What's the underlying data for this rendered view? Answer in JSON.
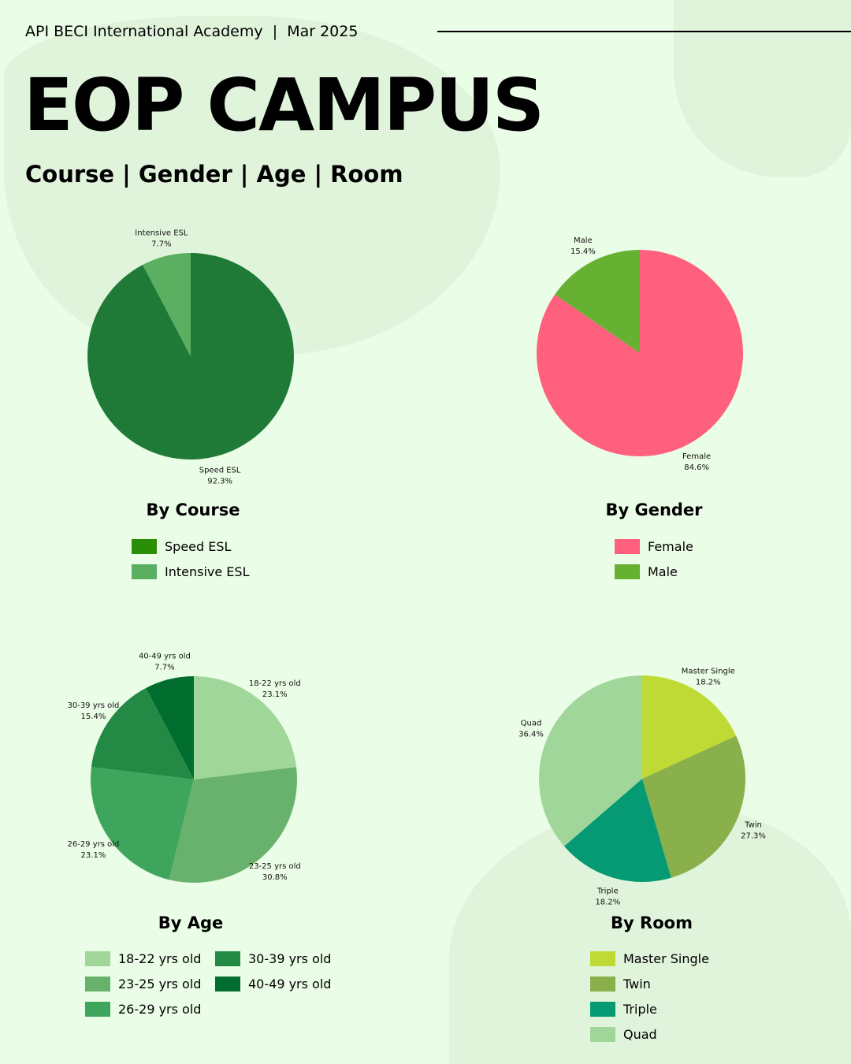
{
  "header": {
    "org": "API BECI International Academy",
    "separator": "|",
    "date": "Mar 2025",
    "title": "EOP CAMPUS",
    "subtitle": "Course | Gender | Age | Room"
  },
  "chart_data": [
    {
      "id": "course",
      "type": "pie",
      "title": "By Course",
      "labels": [
        "Speed ESL",
        "Intensive ESL"
      ],
      "values": [
        92.3,
        7.7
      ],
      "colors": [
        "#1f7a37",
        "#5aaf60"
      ],
      "legend_colors": [
        "#2a8e06",
        "#5aaf60"
      ]
    },
    {
      "id": "gender",
      "type": "pie",
      "title": "By Gender",
      "labels": [
        "Female",
        "Male"
      ],
      "values": [
        84.6,
        15.4
      ],
      "colors": [
        "#ff607d",
        "#66b032"
      ],
      "legend_colors": [
        "#ff607d",
        "#66b032"
      ]
    },
    {
      "id": "age",
      "type": "pie",
      "title": "By Age",
      "labels": [
        "18-22 yrs old",
        "23-25 yrs old",
        "26-29 yrs old",
        "30-39 yrs old",
        "40-49 yrs old"
      ],
      "values": [
        23.1,
        30.8,
        23.1,
        15.4,
        7.7
      ],
      "colors": [
        "#a1d69a",
        "#69b26d",
        "#3ea65c",
        "#238a46",
        "#006d2e"
      ],
      "legend_colors": [
        "#a1d69a",
        "#69b26d",
        "#3ea65c",
        "#238a46",
        "#006d2e"
      ]
    },
    {
      "id": "room",
      "type": "pie",
      "title": "By Room",
      "labels": [
        "Master Single",
        "Twin",
        "Triple",
        "Quad"
      ],
      "values": [
        18.2,
        27.3,
        18.2,
        36.4
      ],
      "colors": [
        "#c0da35",
        "#8ab04b",
        "#059a74",
        "#a1d69a"
      ],
      "legend_colors": [
        "#c0da35",
        "#8ab04b",
        "#059a74",
        "#a1d69a"
      ]
    }
  ]
}
